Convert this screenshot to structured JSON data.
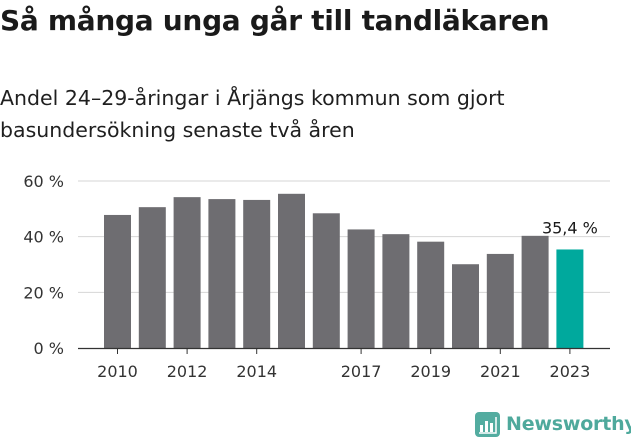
{
  "header": {
    "title": "Så många unga går till tandläkaren",
    "subtitle": "Andel 24–29-åringar i Årjängs kommun som gjort basundersökning senaste två åren"
  },
  "brand": {
    "name": "Newsworthy",
    "color": "#4ea99c",
    "icon": "newsworthy-logo-icon"
  },
  "chart_data": {
    "type": "bar",
    "title": "Så många unga går till tandläkaren",
    "subtitle": "Andel 24–29-åringar i Årjängs kommun som gjort basundersökning senaste två åren",
    "categories": [
      "2010",
      "2011",
      "2012",
      "2013",
      "2014",
      "2015",
      "2016",
      "2017",
      "2018",
      "2019",
      "2020",
      "2021",
      "2022",
      "2023"
    ],
    "x_tick_labels": [
      "2010",
      "2012",
      "2014",
      "2017",
      "2019",
      "2021",
      "2023"
    ],
    "values": [
      47.8,
      50.6,
      54.2,
      53.5,
      53.2,
      55.4,
      48.4,
      42.6,
      40.9,
      38.2,
      30.1,
      33.8,
      40.3,
      35.4
    ],
    "y_ticks": [
      "0 %",
      "20 %",
      "40 %",
      "60 %"
    ],
    "ylim": [
      0,
      60
    ],
    "grid": true,
    "highlight": {
      "category": "2023",
      "label": "35,4 %"
    },
    "colors": {
      "bar": "#6e6d71",
      "highlight": "#00a99d",
      "grid": "#d6d6d6",
      "axis": "#333333"
    }
  }
}
